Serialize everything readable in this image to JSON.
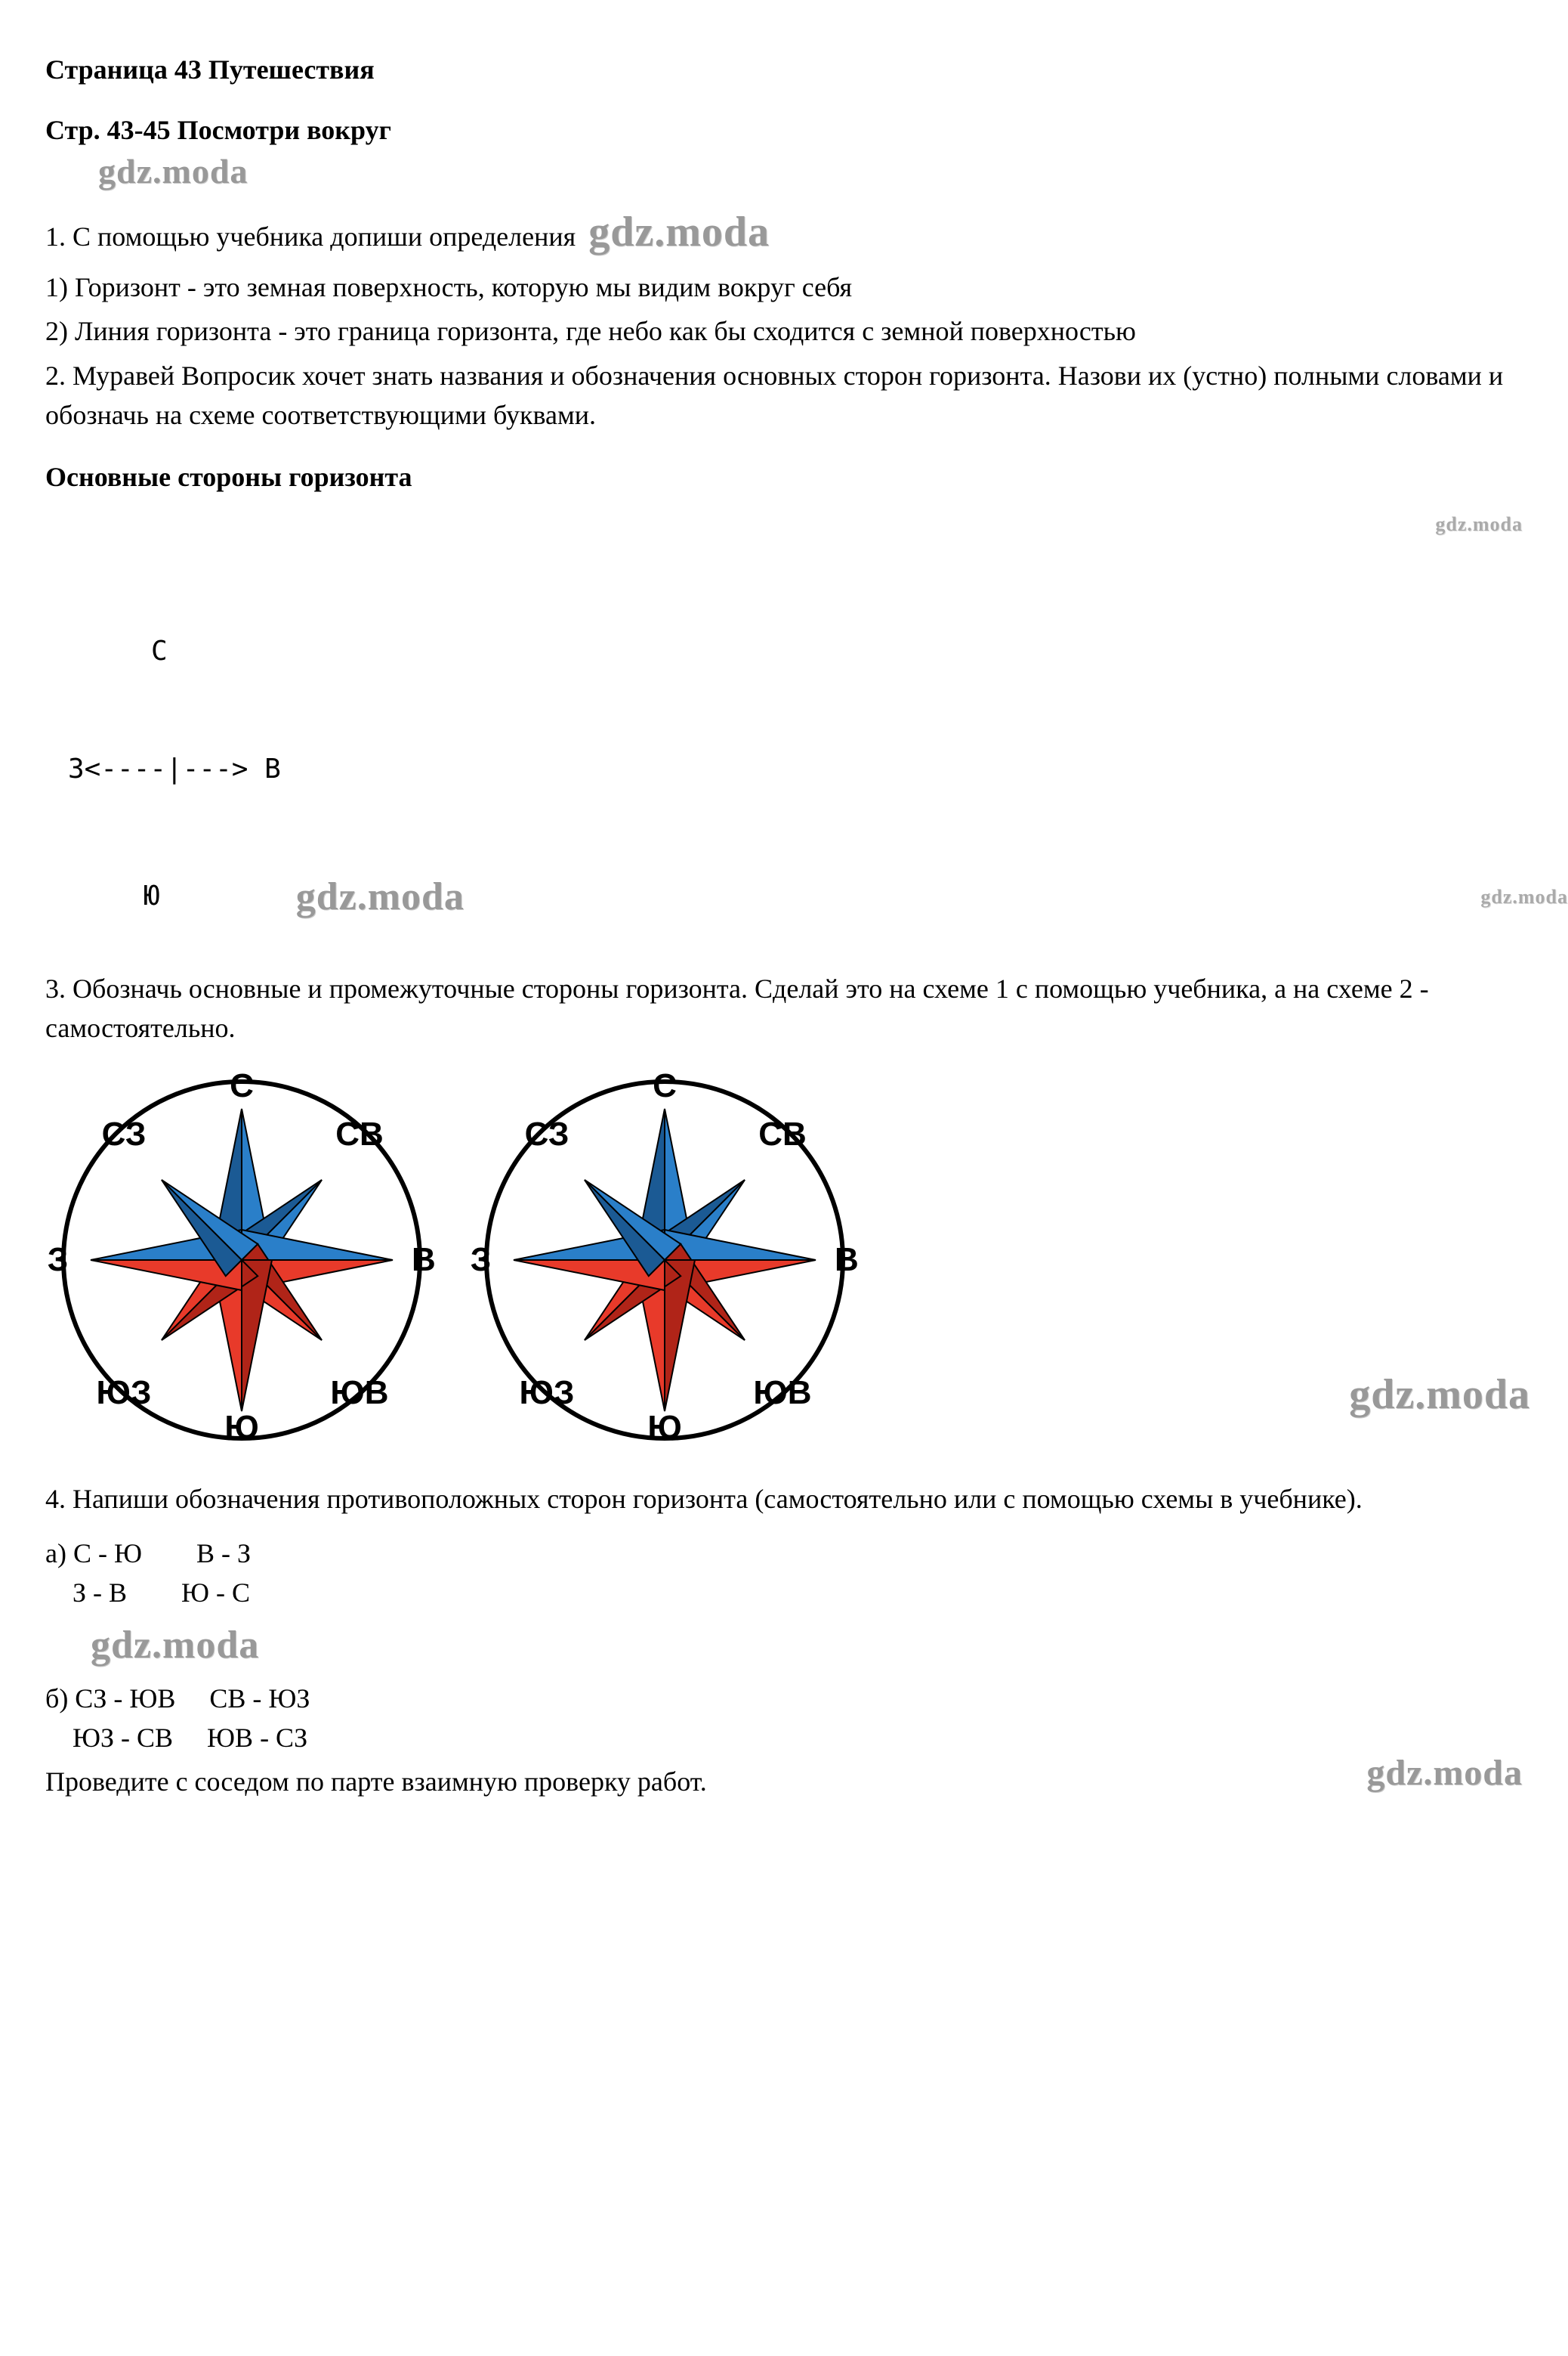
{
  "titles": {
    "page_heading": "Страница 43 Путешествия",
    "sub_heading": "Стр. 43-45 Посмотри вокруг",
    "section_sides": "Основные стороны горизонта"
  },
  "watermark": "gdz.moda",
  "body": {
    "q1_intro": "1. С помощью учебника допиши определения",
    "a1_1": "1) Горизонт - это земная поверхность, которую мы видим вокруг себя",
    "a1_2": "2) Линия горизонта - это граница горизонта, где небо как бы сходится с земной поверхностью",
    "q2": "2. Муравей Вопросик хочет знать названия и обозначения основных сторон горизонта. Назови их (устно) полными словами и обозначь на схеме соответствующими буквами.",
    "cross_n": "С",
    "cross_line": "З<----|---> В",
    "cross_s": "Ю",
    "q3": "3. Обозначь основные и промежуточные стороны горизонта. Сделай это на схеме 1 с помощью учебника, а на схеме 2 - самостоятельно.",
    "q4": "4. Напиши обозначения противоположных сторон горизонта (самостоятельно или с помощью схемы в учебнике).",
    "pairs_a": "а) С - Ю        В - З\n    З - В        Ю - С",
    "pairs_b": "б) СЗ - ЮВ     СВ - ЮЗ\n    ЮЗ - СВ     ЮВ - СЗ",
    "closing": "Проведите с соседом по парте взаимную проверку работ."
  },
  "compass": {
    "labels": {
      "n": "С",
      "ne": "СВ",
      "e": "В",
      "se": "ЮВ",
      "s": "Ю",
      "sw": "ЮЗ",
      "w": "З",
      "nw": "СЗ"
    },
    "colors": {
      "top_primary": "#2a7fc9",
      "top_shadow": "#1b5a94",
      "bottom_primary": "#e83a2a",
      "bottom_shadow": "#b02418",
      "circle_stroke": "#000000",
      "bg": "#ffffff"
    },
    "circle_stroke_width": 6,
    "label_fontsize": 44
  }
}
